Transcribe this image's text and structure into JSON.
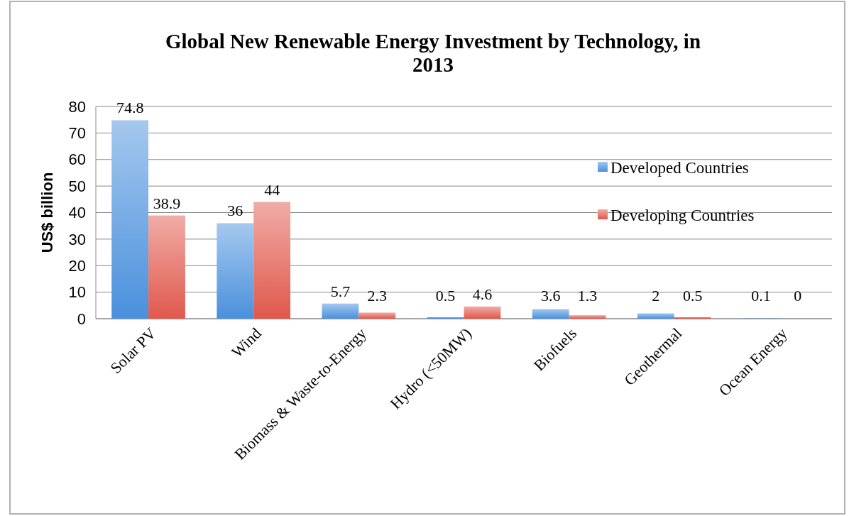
{
  "chart_data": {
    "type": "bar",
    "title": "Global New Renewable Energy Investment by Technology, in 2013",
    "ylabel": "US$ billion",
    "categories": [
      "Solar PV",
      "Wind",
      "Biomass & Waste-to-Energy",
      "Hydro (<50MW)",
      "Biofuels",
      "Geothermal",
      "Ocean Energy"
    ],
    "series": [
      {
        "name": "Developed Countries",
        "color": "#4a90dc",
        "values": [
          74.8,
          36,
          5.7,
          0.5,
          3.6,
          2,
          0.1
        ]
      },
      {
        "name": "Developing Countries",
        "color": "#e0584c",
        "values": [
          38.9,
          44,
          2.3,
          4.6,
          1.3,
          0.5,
          0
        ]
      }
    ],
    "ylim": [
      0,
      80
    ],
    "yticks": [
      0,
      10,
      20,
      30,
      40,
      50,
      60,
      70,
      80
    ],
    "grid": "y",
    "legend": "right",
    "data_labels": true
  }
}
